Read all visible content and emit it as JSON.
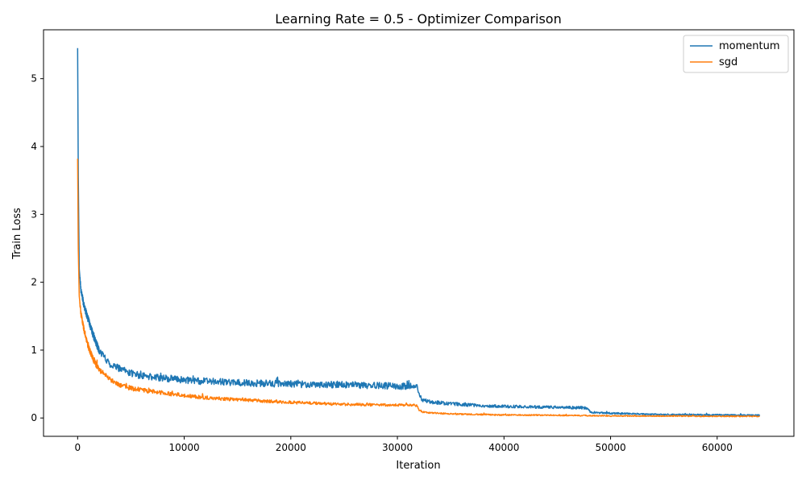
{
  "chart_data": {
    "type": "line",
    "title": "Learning Rate = 0.5 - Optimizer Comparison",
    "xlabel": "Iteration",
    "ylabel": "Train Loss",
    "xlim": [
      -3200,
      67200
    ],
    "ylim": [
      -0.27,
      5.72
    ],
    "xticks": [
      0,
      10000,
      20000,
      30000,
      40000,
      50000,
      60000
    ],
    "yticks": [
      0,
      1,
      2,
      3,
      4,
      5
    ],
    "grid": false,
    "legend": "top-right",
    "series": [
      {
        "name": "momentum",
        "color": "#1f77b4",
        "noise": 0.045,
        "x": [
          0,
          60,
          150,
          300,
          600,
          1000,
          1500,
          2000,
          3000,
          4000,
          5000,
          6000,
          8000,
          10000,
          12000,
          15000,
          20000,
          25000,
          30000,
          31900,
          32000,
          32300,
          33000,
          35000,
          38000,
          40000,
          44000,
          47500,
          47900,
          48000,
          48300,
          50000,
          55000,
          60000,
          64000
        ],
        "y": [
          5.45,
          3.6,
          2.2,
          1.9,
          1.65,
          1.45,
          1.2,
          1.0,
          0.8,
          0.72,
          0.66,
          0.62,
          0.59,
          0.56,
          0.54,
          0.52,
          0.5,
          0.49,
          0.47,
          0.46,
          0.35,
          0.27,
          0.24,
          0.21,
          0.18,
          0.17,
          0.16,
          0.15,
          0.14,
          0.1,
          0.08,
          0.07,
          0.05,
          0.045,
          0.04
        ]
      },
      {
        "name": "sgd",
        "color": "#ff7f0e",
        "noise": 0.035,
        "x": [
          0,
          60,
          150,
          300,
          600,
          1000,
          1500,
          2000,
          3000,
          4000,
          5000,
          6000,
          8000,
          10000,
          12000,
          15000,
          20000,
          25000,
          30000,
          31900,
          32000,
          32300,
          33000,
          35000,
          40000,
          45000,
          48000,
          50000,
          55000,
          60000,
          64000
        ],
        "y": [
          3.82,
          2.5,
          1.8,
          1.55,
          1.3,
          1.05,
          0.85,
          0.72,
          0.57,
          0.49,
          0.44,
          0.41,
          0.37,
          0.33,
          0.3,
          0.27,
          0.23,
          0.2,
          0.19,
          0.185,
          0.12,
          0.09,
          0.075,
          0.06,
          0.045,
          0.04,
          0.035,
          0.03,
          0.03,
          0.025,
          0.025
        ]
      }
    ]
  }
}
